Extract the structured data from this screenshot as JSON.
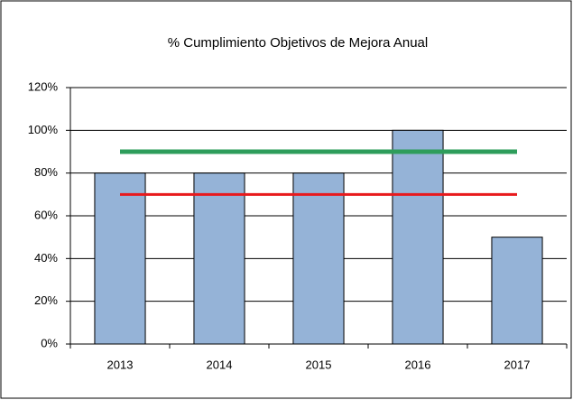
{
  "chart_data": {
    "type": "bar",
    "title": "% Cumplimiento Objetivos de Mejora Anual",
    "categories": [
      "2013",
      "2014",
      "2015",
      "2016",
      "2017"
    ],
    "series": [
      {
        "type": "bar",
        "color": "#95b3d7",
        "values": [
          80,
          80,
          80,
          100,
          50
        ]
      },
      {
        "type": "line",
        "color": "#2e9d5b",
        "values": [
          90,
          90,
          90,
          90,
          90
        ]
      },
      {
        "type": "line",
        "color": "#e8191c",
        "values": [
          70,
          70,
          70,
          70,
          70
        ]
      }
    ],
    "ylim": [
      0,
      120
    ],
    "yticks": [
      {
        "value": 0,
        "label": "0%"
      },
      {
        "value": 20,
        "label": "20%"
      },
      {
        "value": 40,
        "label": "40%"
      },
      {
        "value": 60,
        "label": "60%"
      },
      {
        "value": 80,
        "label": "80%"
      },
      {
        "value": 100,
        "label": "100%"
      },
      {
        "value": 120,
        "label": "120%"
      }
    ],
    "grid": true
  }
}
